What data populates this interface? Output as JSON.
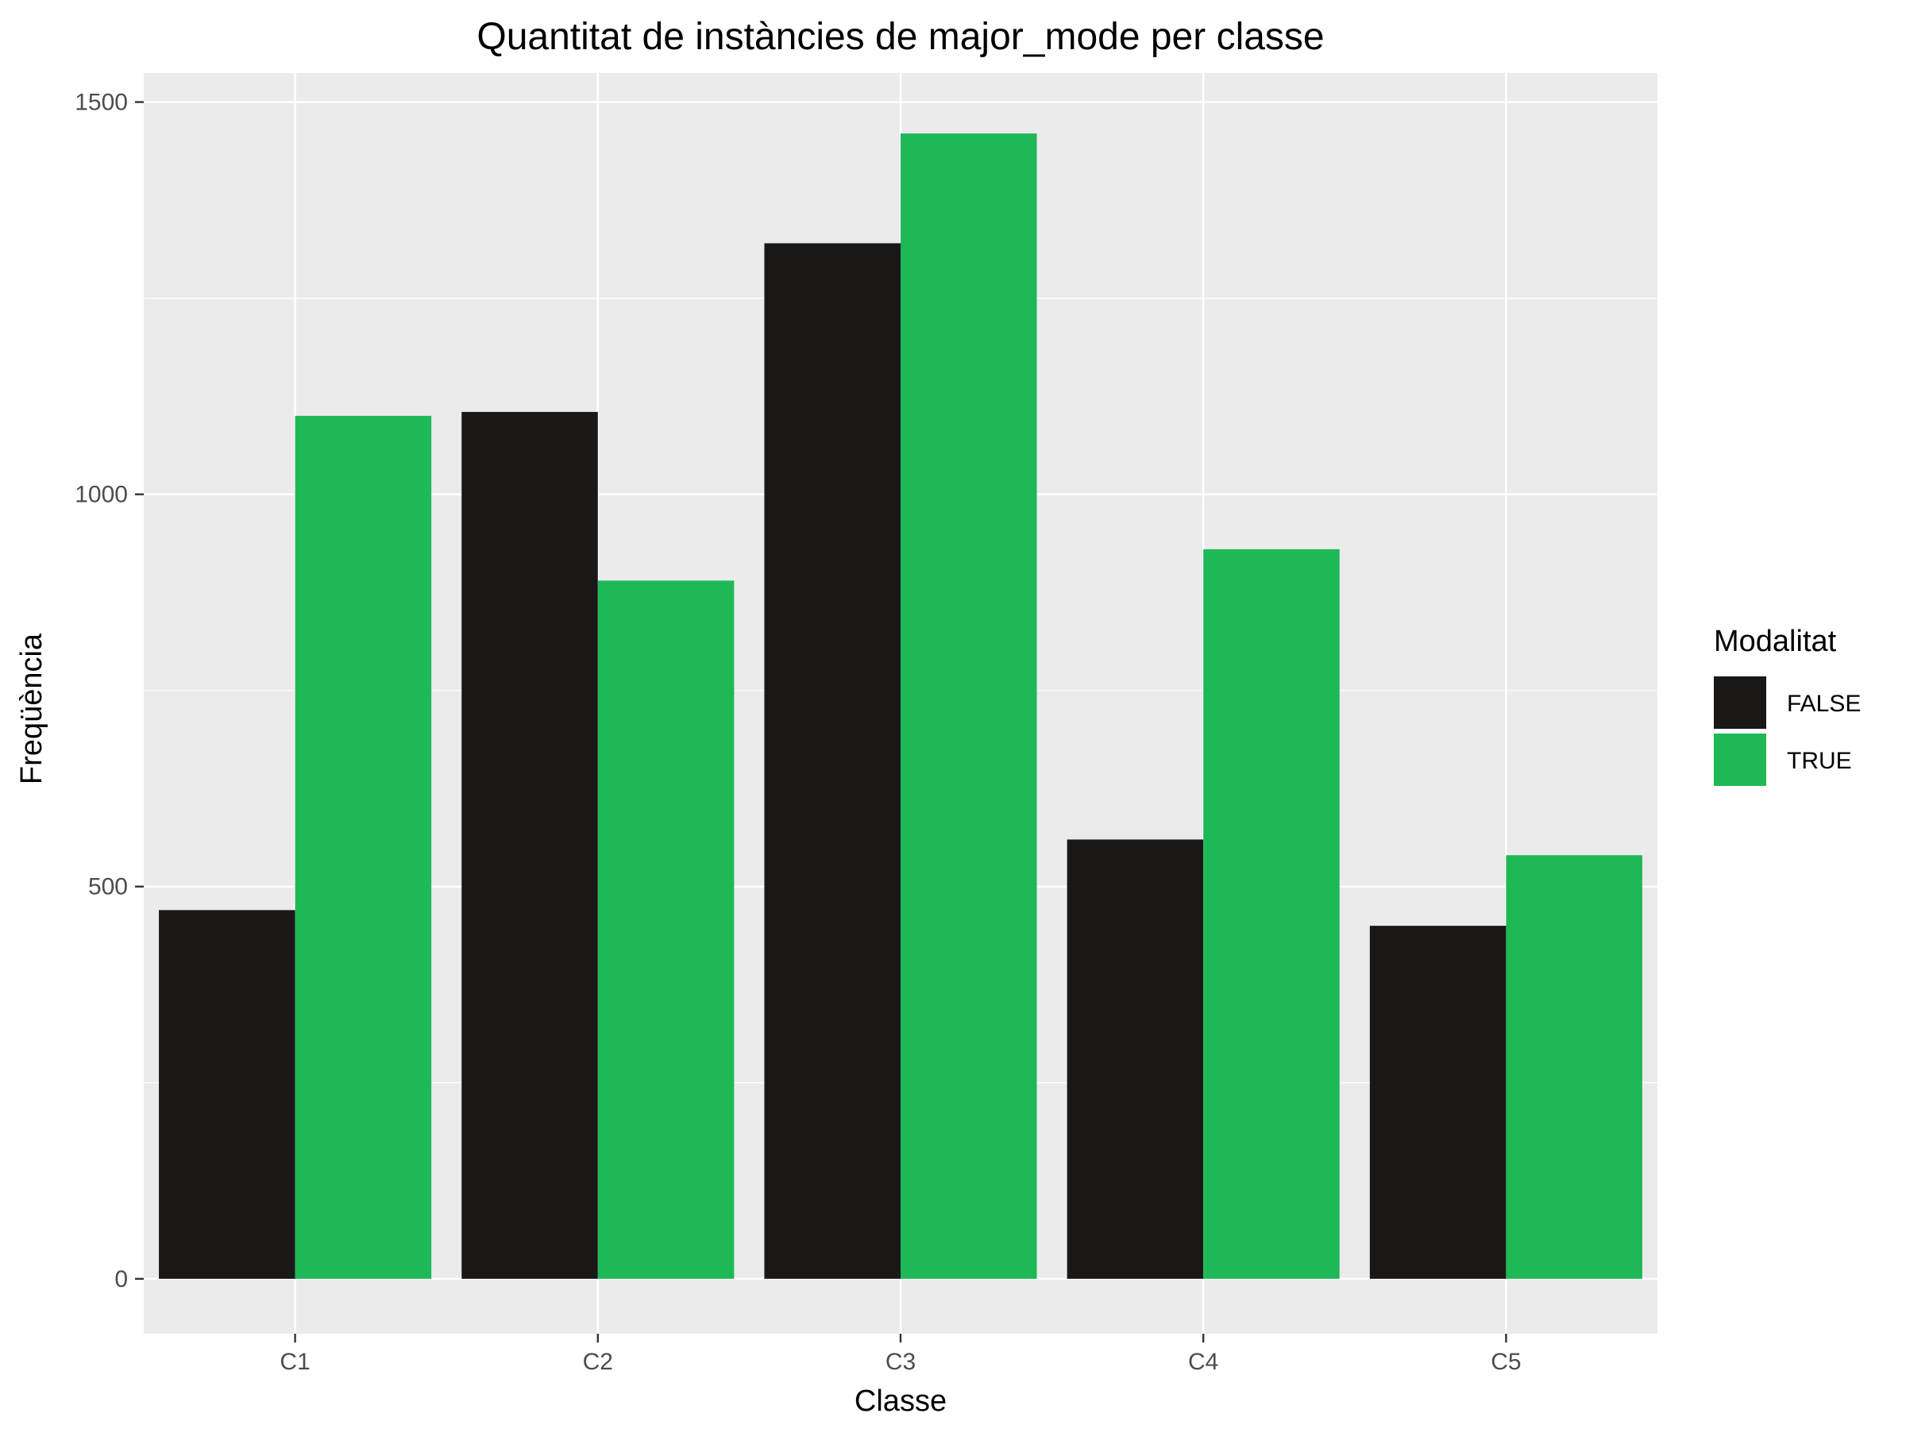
{
  "chart_data": {
    "type": "bar",
    "title": "Quantitat de instàncies de major_mode per classe",
    "xlabel": "Classe",
    "ylabel": "Freqüència",
    "categories": [
      "C1",
      "C2",
      "C3",
      "C4",
      "C5"
    ],
    "series": [
      {
        "name": "FALSE",
        "values": [
          470,
          1105,
          1320,
          560,
          450
        ],
        "color": "#1a1717"
      },
      {
        "name": "TRUE",
        "values": [
          1100,
          890,
          1460,
          930,
          540
        ],
        "color": "#1fb856"
      }
    ],
    "ylim": [
      -70,
      1537
    ],
    "yticks": [
      0,
      500,
      1000,
      1500
    ],
    "grid": true,
    "legend": {
      "title": "Modalitat",
      "position": "right"
    },
    "panel_color": "#ebebeb",
    "grid_color": "#ffffff"
  }
}
